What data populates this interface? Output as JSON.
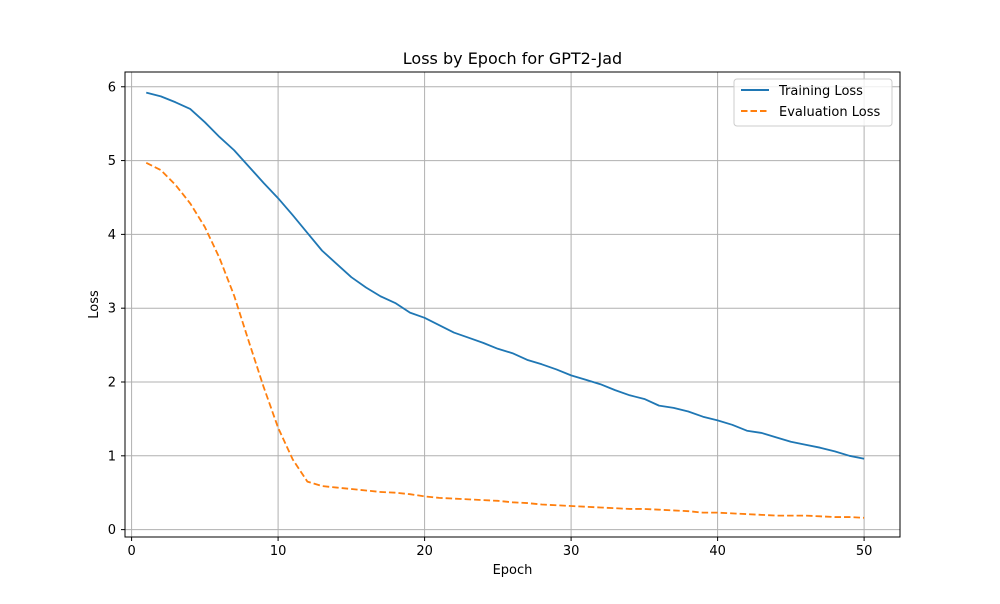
{
  "chart_data": {
    "type": "line",
    "title": "Loss by Epoch for GPT2-Jad",
    "xlabel": "Epoch",
    "ylabel": "Loss",
    "xlim": [
      -0.45,
      52.45
    ],
    "ylim": [
      -0.1,
      6.2
    ],
    "x_ticks": [
      0,
      10,
      20,
      30,
      40,
      50
    ],
    "y_ticks": [
      0,
      1,
      2,
      3,
      4,
      5,
      6
    ],
    "grid": true,
    "legend_position": "top-right",
    "x": [
      1,
      2,
      3,
      4,
      5,
      6,
      7,
      8,
      9,
      10,
      11,
      12,
      13,
      14,
      15,
      16,
      17,
      18,
      19,
      20,
      21,
      22,
      23,
      24,
      25,
      26,
      27,
      28,
      29,
      30,
      31,
      32,
      33,
      34,
      35,
      36,
      37,
      38,
      39,
      40,
      41,
      42,
      43,
      44,
      45,
      46,
      47,
      48,
      49,
      50
    ],
    "series": [
      {
        "name": "Training Loss",
        "color": "#1f77b4",
        "style": "solid",
        "values": [
          5.92,
          5.87,
          5.79,
          5.7,
          5.52,
          5.32,
          5.14,
          4.92,
          4.7,
          4.49,
          4.26,
          4.02,
          3.78,
          3.6,
          3.42,
          3.28,
          3.16,
          3.07,
          2.94,
          2.87,
          2.77,
          2.67,
          2.6,
          2.53,
          2.45,
          2.39,
          2.3,
          2.24,
          2.17,
          2.09,
          2.03,
          1.97,
          1.89,
          1.82,
          1.77,
          1.68,
          1.65,
          1.6,
          1.53,
          1.48,
          1.42,
          1.34,
          1.31,
          1.25,
          1.19,
          1.15,
          1.11,
          1.06,
          1.0,
          0.96
        ]
      },
      {
        "name": "Evaluation Loss",
        "color": "#ff7f0e",
        "style": "dashed",
        "values": [
          4.97,
          4.87,
          4.67,
          4.42,
          4.1,
          3.68,
          3.17,
          2.55,
          1.94,
          1.38,
          0.95,
          0.65,
          0.59,
          0.57,
          0.55,
          0.53,
          0.51,
          0.5,
          0.48,
          0.45,
          0.43,
          0.42,
          0.41,
          0.4,
          0.39,
          0.37,
          0.36,
          0.34,
          0.33,
          0.32,
          0.31,
          0.3,
          0.29,
          0.28,
          0.28,
          0.27,
          0.26,
          0.25,
          0.23,
          0.23,
          0.22,
          0.21,
          0.2,
          0.19,
          0.19,
          0.19,
          0.18,
          0.17,
          0.17,
          0.16
        ]
      }
    ]
  }
}
